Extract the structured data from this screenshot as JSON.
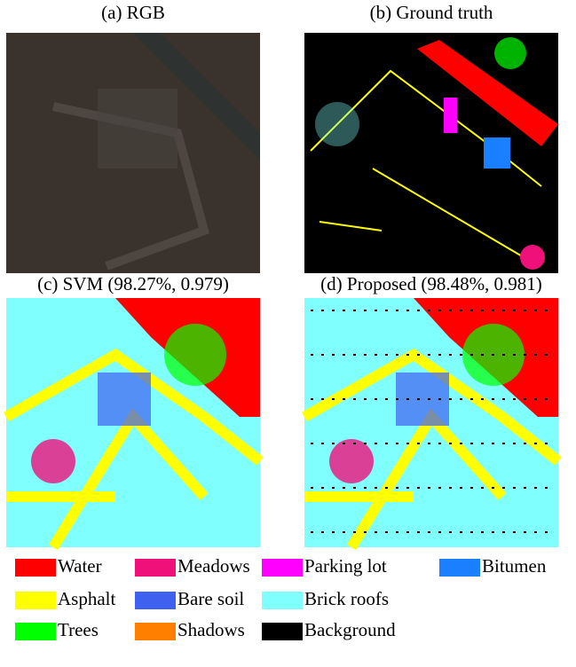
{
  "panels": [
    {
      "caption": "(a) RGB"
    },
    {
      "caption": "(b) Ground truth"
    },
    {
      "caption": "(c) SVM (98.27%, 0.979)"
    },
    {
      "caption": "(d) Proposed (98.48%, 0.981)"
    }
  ],
  "legend": [
    {
      "label": "Water",
      "color": "#ff0000"
    },
    {
      "label": "Meadows",
      "color": "#f0107a"
    },
    {
      "label": "Parking lot",
      "color": "#ff00ff"
    },
    {
      "label": "Bitumen",
      "color": "#1a80ff"
    },
    {
      "label": "Asphalt",
      "color": "#ffff00"
    },
    {
      "label": "Bare soil",
      "color": "#4060f0"
    },
    {
      "label": "Brick roofs",
      "color": "#80ffff"
    },
    {
      "label": "Trees",
      "color": "#00ff00"
    },
    {
      "label": "Shadows",
      "color": "#ff8000"
    },
    {
      "label": "Background",
      "color": "#000000"
    }
  ]
}
